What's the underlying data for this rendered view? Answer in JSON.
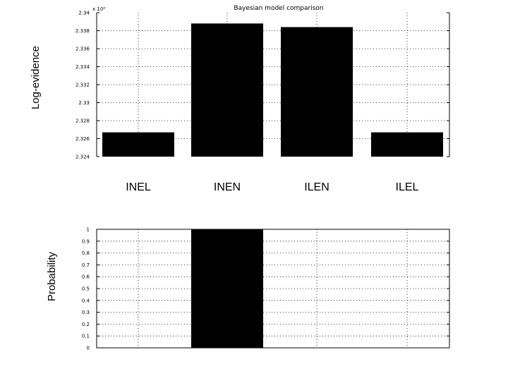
{
  "chart_data": [
    {
      "type": "bar",
      "title": "Bayesian model comparison",
      "ylabel": "Log-evidence",
      "exponent_label": "x 10⁴",
      "categories": [
        "INEL",
        "INEN",
        "ILEN",
        "ILEL"
      ],
      "values": [
        2.3267,
        2.3388,
        2.3384,
        2.3267
      ],
      "ylim": [
        2.324,
        2.34
      ],
      "yticks": [
        2.324,
        2.326,
        2.328,
        2.33,
        2.332,
        2.334,
        2.336,
        2.338,
        2.34
      ],
      "ytick_labels": [
        "2.324",
        "2.326",
        "2.328",
        "2.33",
        "2.332",
        "2.334",
        "2.336",
        "2.338",
        "2.34"
      ],
      "bar_color": "#000000",
      "grid": true
    },
    {
      "type": "bar",
      "title": "",
      "ylabel": "Probability",
      "categories": [
        "INEL",
        "INEN",
        "ILEN",
        "ILEL"
      ],
      "values": [
        0,
        1,
        0,
        0
      ],
      "ylim": [
        0,
        1
      ],
      "yticks": [
        0,
        0.1,
        0.2,
        0.3,
        0.4,
        0.5,
        0.6,
        0.7,
        0.8,
        0.9,
        1
      ],
      "ytick_labels": [
        "0",
        "0.1",
        "0.2",
        "0.3",
        "0.4",
        "0.5",
        "0.6",
        "0.7",
        "0.8",
        "0.9",
        "1"
      ],
      "bar_color": "#000000",
      "grid": true
    }
  ]
}
